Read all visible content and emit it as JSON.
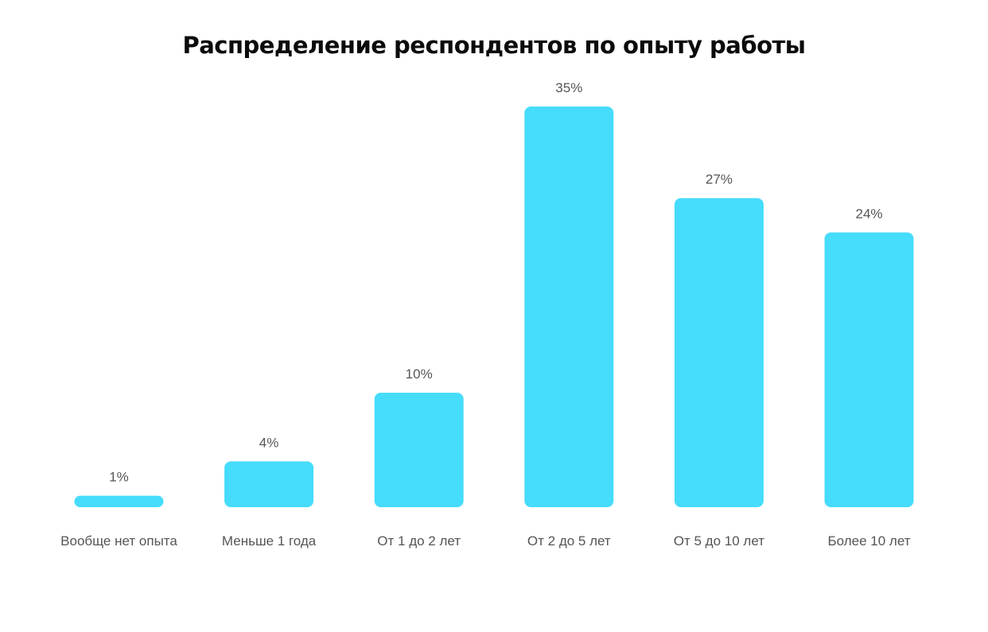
{
  "chart_data": {
    "type": "bar",
    "title": "Распределение респондентов по опыту работы",
    "categories": [
      "Вообще нет опыта",
      "Меньше 1 года",
      "От 1 до 2 лет",
      "От 2 до 5 лет",
      "От 5 до 10 лет",
      "Более 10 лет"
    ],
    "values": [
      1,
      4,
      10,
      35,
      27,
      24
    ],
    "value_labels": [
      "1%",
      "4%",
      "10%",
      "35%",
      "27%",
      "24%"
    ],
    "ylim": [
      0,
      35
    ],
    "grid": false,
    "legend": "none",
    "bar_color": "#46DCFC",
    "label_color": "#555555",
    "title_color": "#0B0B0B"
  }
}
